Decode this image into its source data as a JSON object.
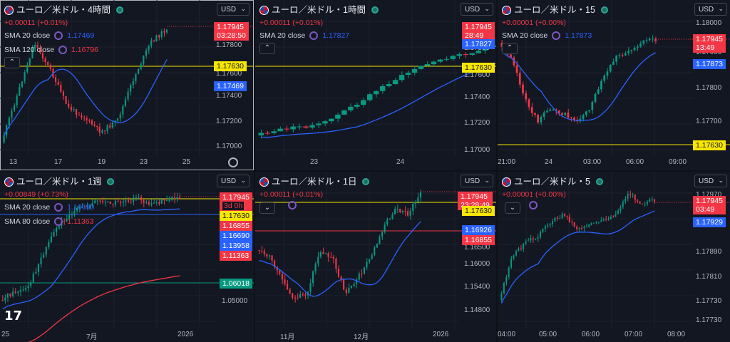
{
  "colors": {
    "up": "#089981",
    "down": "#f23645",
    "sma_blue": "#2962ff",
    "sma_red": "#f23645",
    "hline_yellow": "#f7e600",
    "bg": "#131722"
  },
  "panes": [
    {
      "id": "p1",
      "symbol": "ユーロ／米ドル・4時間",
      "change": "+0.00011 (+0.01%)",
      "currency": "USD",
      "indicators": [
        {
          "label": "SMA 20 close",
          "value": "1.17469",
          "color": "#2962ff"
        },
        {
          "label": "SMA 120 close",
          "value": "1.16796",
          "color": "#f23645"
        }
      ],
      "price_labels": [
        "1.17945",
        "03:28:50",
        "1.17630",
        "1.17469"
      ],
      "y_ticks": [
        "1.17800",
        "1.17600",
        "1.17400",
        "1.17200",
        "1.17000"
      ],
      "x_ticks": [
        "13",
        "17",
        "19",
        "23",
        "25"
      ]
    },
    {
      "id": "p2",
      "symbol": "ユーロ／米ドル・1時間",
      "change": "+0.00011 (+0.01%)",
      "currency": "USD",
      "indicators": [
        {
          "label": "SMA 20 close",
          "value": "1.17827",
          "color": "#2962ff"
        }
      ],
      "price_labels": [
        "1.17945",
        "28:49",
        "1.17827",
        "1.17630"
      ],
      "y_ticks": [
        "1.17800",
        "1.17600",
        "1.17400",
        "1.17200",
        "1.17000"
      ],
      "x_ticks": [
        "23",
        "24"
      ]
    },
    {
      "id": "p3",
      "symbol": "ユーロ／米ドル・15",
      "change": "+0.00001 (+0.00%)",
      "currency": "USD",
      "indicators": [
        {
          "label": "SMA 20 close",
          "value": "1.17873",
          "color": "#2962ff"
        }
      ],
      "price_labels": [
        "1.17945",
        "13:49",
        "1.17873",
        "1.17630"
      ],
      "y_ticks": [
        "1.18000",
        "1.17900",
        "1.17800",
        "1.17700"
      ],
      "x_ticks": [
        "21:00",
        "24",
        "03:00",
        "06:00",
        "09:00"
      ]
    },
    {
      "id": "p4",
      "symbol": "ユーロ／米ドル・1週",
      "change": "+0.00849 (+0.73%)",
      "currency": "USD",
      "indicators": [
        {
          "label": "SMA 20 close",
          "value": "1.16690",
          "color": "#2962ff"
        },
        {
          "label": "SMA 80 close",
          "value": "1.11363",
          "color": "#f23645"
        }
      ],
      "price_labels": [
        "1.17945",
        "3d 0h",
        "1.17630",
        "1.16855",
        "1.16690",
        "1.13958",
        "1.11363",
        "1.06018"
      ],
      "y_ticks": [
        "1.05000"
      ],
      "x_ticks": [
        "25",
        "7月",
        "2026"
      ]
    },
    {
      "id": "p5",
      "symbol": "ユーロ／米ドル・1日",
      "change": "+0.00011 (+0.01%)",
      "currency": "USD",
      "indicators": [],
      "price_labels": [
        "1.17945",
        "23:28:49",
        "1.17630",
        "1.16926",
        "1.16855"
      ],
      "y_ticks": [
        "1.16500",
        "1.16000",
        "1.15400",
        "1.14800"
      ],
      "x_ticks": [
        "11月",
        "12月",
        "2026"
      ]
    },
    {
      "id": "p6",
      "symbol": "ユーロ／米ドル・5",
      "change": "+0.00001 (+0.00%)",
      "currency": "USD",
      "indicators": [],
      "price_labels": [
        "1.17945",
        "03:49",
        "1.17929"
      ],
      "y_ticks": [
        "1.17970",
        "1.17890",
        "1.17810",
        "1.17730"
      ],
      "x_ticks": [
        "04:00",
        "05:00",
        "06:00",
        "07:00",
        "08:00"
      ]
    }
  ]
}
